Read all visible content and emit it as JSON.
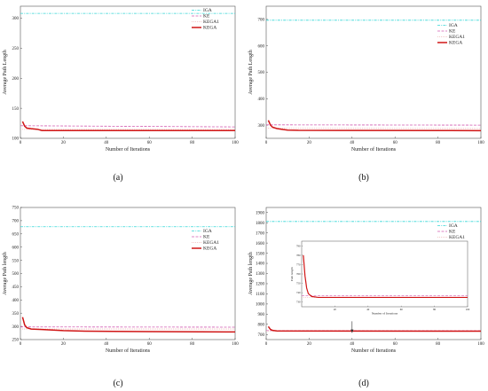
{
  "colors": {
    "IGA": "#35d6d6",
    "KE": "#d35fb3",
    "KEGA1": "#f2b8b8",
    "KEGA": "#d01515",
    "axis": "#555555"
  },
  "chart_data": [
    {
      "type": "line",
      "panel_label": "(a)",
      "xlabel": "Number of Iterations",
      "ylabel": "Average Path Length",
      "xlim": [
        0,
        100
      ],
      "ylim": [
        100,
        320
      ],
      "xticks": [
        0,
        20,
        40,
        60,
        80,
        100
      ],
      "yticks": [
        100,
        150,
        200,
        250,
        300
      ],
      "legend_position": "top-right",
      "series": [
        {
          "name": "IGA",
          "style": "dashdot",
          "points": [
            [
              0,
              308
            ],
            [
              100,
              308
            ]
          ]
        },
        {
          "name": "KE",
          "style": "dashed",
          "points": [
            [
              0,
              121
            ],
            [
              100,
              119
            ]
          ]
        },
        {
          "name": "KEGA1",
          "style": "dotted",
          "points": [
            [
              0,
              115
            ],
            [
              100,
              115
            ]
          ]
        },
        {
          "name": "KEGA",
          "style": "solid",
          "points": [
            [
              1,
              128
            ],
            [
              2,
              120
            ],
            [
              3,
              117
            ],
            [
              5,
              116
            ],
            [
              8,
              115
            ],
            [
              10,
              113
            ],
            [
              15,
              113
            ],
            [
              100,
              113
            ]
          ]
        }
      ]
    },
    {
      "type": "line",
      "panel_label": "(b)",
      "xlabel": "Number of Iterations",
      "ylabel": "Average Path Length",
      "xlim": [
        0,
        100
      ],
      "ylim": [
        250,
        750
      ],
      "xticks": [
        0,
        20,
        40,
        60,
        80,
        100
      ],
      "yticks": [
        300,
        400,
        500,
        600,
        700
      ],
      "legend_position": "top-right",
      "series": [
        {
          "name": "IGA",
          "style": "dashdot",
          "points": [
            [
              0,
              697
            ],
            [
              100,
              697
            ]
          ]
        },
        {
          "name": "KE",
          "style": "dashed",
          "points": [
            [
              0,
              301
            ],
            [
              100,
              300
            ]
          ]
        },
        {
          "name": "KEGA1",
          "style": "dotted",
          "points": [
            [
              0,
              288
            ],
            [
              100,
              287
            ]
          ]
        },
        {
          "name": "KEGA",
          "style": "solid",
          "points": [
            [
              1,
              318
            ],
            [
              2,
              300
            ],
            [
              3,
              292
            ],
            [
              5,
              287
            ],
            [
              8,
              283
            ],
            [
              10,
              281
            ],
            [
              15,
              280
            ],
            [
              100,
              279
            ]
          ]
        }
      ]
    },
    {
      "type": "line",
      "panel_label": "(c)",
      "xlabel": "Number of Iterations",
      "ylabel": "Average Path length",
      "xlim": [
        0,
        100
      ],
      "ylim": [
        250,
        750
      ],
      "xticks": [
        0,
        20,
        40,
        60,
        80,
        100
      ],
      "yticks": [
        250,
        300,
        350,
        400,
        450,
        500,
        550,
        600,
        650,
        700,
        750
      ],
      "legend_position": "top-right",
      "series": [
        {
          "name": "IGA",
          "style": "dashdot",
          "points": [
            [
              0,
              677
            ],
            [
              100,
              677
            ]
          ]
        },
        {
          "name": "KE",
          "style": "dashed",
          "points": [
            [
              0,
              298
            ],
            [
              100,
              297
            ]
          ]
        },
        {
          "name": "KEGA1",
          "style": "dotted",
          "points": [
            [
              0,
              290
            ],
            [
              100,
              290
            ]
          ]
        },
        {
          "name": "KEGA",
          "style": "solid",
          "points": [
            [
              1,
              335
            ],
            [
              2,
              305
            ],
            [
              3,
              295
            ],
            [
              5,
              290
            ],
            [
              10,
              288
            ],
            [
              20,
              284
            ],
            [
              30,
              282
            ],
            [
              60,
              280
            ],
            [
              100,
              279
            ]
          ]
        }
      ]
    },
    {
      "type": "line",
      "panel_label": "(d)",
      "xlabel": "Number of Iterations",
      "ylabel": "Average Path length",
      "xlim": [
        0,
        100
      ],
      "ylim": [
        650,
        1950
      ],
      "xticks": [
        0,
        20,
        40,
        60,
        80,
        100
      ],
      "yticks": [
        700,
        800,
        900,
        1000,
        1100,
        1200,
        1300,
        1400,
        1500,
        1600,
        1700,
        1800,
        1900
      ],
      "legend_position": "top-right",
      "arrow_annotation": {
        "from": [
          40,
          830
        ],
        "to": [
          40,
          745
        ]
      },
      "series": [
        {
          "name": "IGA",
          "style": "dashdot",
          "points": [
            [
              0,
              1812
            ],
            [
              100,
              1812
            ]
          ]
        },
        {
          "name": "KE",
          "style": "dashed",
          "points": [
            [
              0,
              738
            ],
            [
              100,
              737
            ]
          ]
        },
        {
          "name": "KEGA1",
          "style": "dotted",
          "points": [
            [
              0,
              734
            ],
            [
              100,
              734
            ]
          ]
        },
        {
          "name": "KEGA",
          "style": "solid",
          "points": [
            [
              1,
              778
            ],
            [
              2,
              750
            ],
            [
              3,
              740
            ],
            [
              5,
              735
            ],
            [
              100,
              733
            ]
          ]
        }
      ],
      "inset": {
        "xlabel": "Number of Iterations",
        "ylabel": "Path length",
        "xlim": [
          0,
          100
        ],
        "ylim": [
          725,
          795
        ],
        "xticks": [
          20,
          40,
          60,
          80,
          100
        ],
        "yticks": [
          730,
          740,
          750,
          760,
          770,
          780,
          790
        ],
        "series": [
          {
            "name": "KE",
            "style": "dashed",
            "points": [
              [
                0,
                737
              ],
              [
                100,
                737
              ]
            ]
          },
          {
            "name": "KEGA1",
            "style": "dotted",
            "points": [
              [
                0,
                735
              ],
              [
                100,
                735
              ]
            ]
          },
          {
            "name": "KEGA",
            "style": "solid",
            "points": [
              [
                1,
                780
              ],
              [
                2,
                758
              ],
              [
                3,
                745
              ],
              [
                4,
                739
              ],
              [
                6,
                736
              ],
              [
                10,
                735
              ],
              [
                100,
                735
              ]
            ]
          }
        ]
      }
    }
  ]
}
